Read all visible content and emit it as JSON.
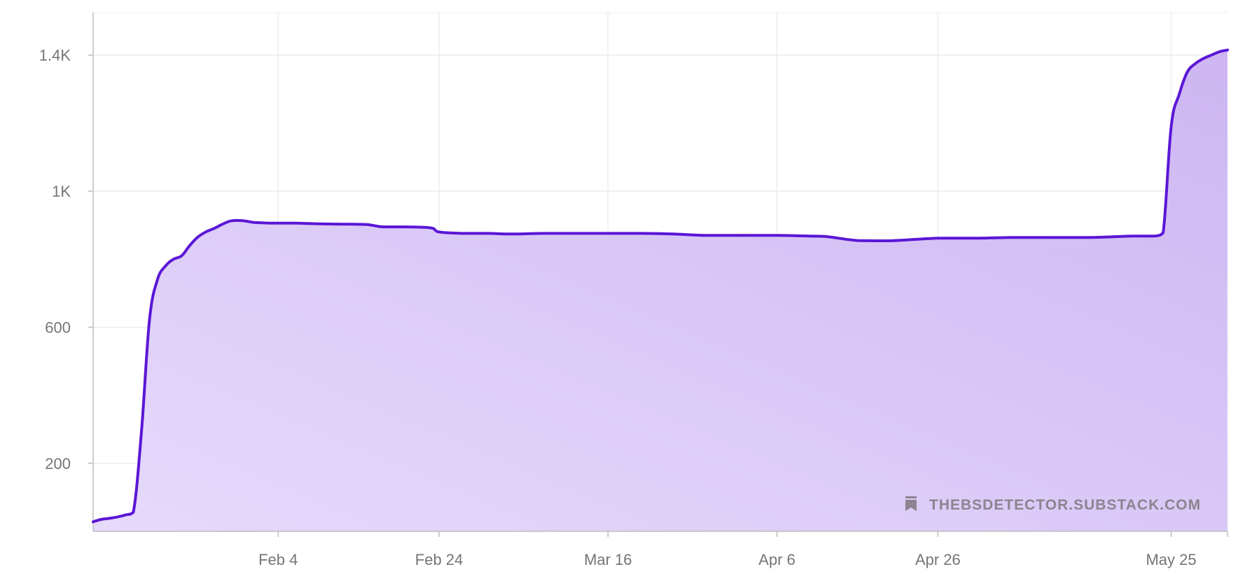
{
  "colors": {
    "line": "#5b16d6",
    "fill_light": "#e6dafb",
    "fill_dark": "#cdb6f2",
    "grid": "#ececec",
    "axis": "#bdbdbd",
    "tick_text": "#757575",
    "watermark": "#8a8490"
  },
  "watermark": {
    "icon": "bookmark-icon",
    "text": "THEBSDETECTOR.SUBSTACK.COM"
  },
  "chart_data": {
    "type": "area",
    "title": "",
    "xlabel": "",
    "ylabel": "",
    "grid": true,
    "legend": "none",
    "xlim": [
      "2024-01-12",
      "2024-06-01"
    ],
    "ylim": [
      0,
      1525
    ],
    "x_ticks": [
      {
        "date": "2024-02-04",
        "label": "Feb 4"
      },
      {
        "date": "2024-02-24",
        "label": "Feb 24"
      },
      {
        "date": "2024-03-16",
        "label": "Mar 16"
      },
      {
        "date": "2024-04-06",
        "label": "Apr 6"
      },
      {
        "date": "2024-04-26",
        "label": "Apr 26"
      },
      {
        "date": "2024-05-25",
        "label": "May 25"
      }
    ],
    "y_ticks": [
      {
        "value": 200,
        "label": "200"
      },
      {
        "value": 600,
        "label": "600"
      },
      {
        "value": 1000,
        "label": "1K"
      },
      {
        "value": 1400,
        "label": "1.4K"
      }
    ],
    "series": [
      {
        "x": [
          "2024-01-12",
          "2024-01-13",
          "2024-01-14",
          "2024-01-15",
          "2024-01-16",
          "2024-01-17",
          "2024-01-18",
          "2024-01-19",
          "2024-01-20",
          "2024-01-21",
          "2024-01-22",
          "2024-01-23",
          "2024-01-24",
          "2024-01-25",
          "2024-01-26",
          "2024-01-27",
          "2024-01-28",
          "2024-01-29",
          "2024-01-30",
          "2024-01-31",
          "2024-02-01",
          "2024-02-02",
          "2024-02-03",
          "2024-02-04",
          "2024-02-06",
          "2024-02-09",
          "2024-02-12",
          "2024-02-15",
          "2024-02-17",
          "2024-02-20",
          "2024-02-23",
          "2024-02-24",
          "2024-02-27",
          "2024-03-01",
          "2024-03-04",
          "2024-03-08",
          "2024-03-12",
          "2024-03-16",
          "2024-03-20",
          "2024-03-24",
          "2024-03-28",
          "2024-04-01",
          "2024-04-06",
          "2024-04-10",
          "2024-04-12",
          "2024-04-16",
          "2024-04-20",
          "2024-04-26",
          "2024-05-01",
          "2024-05-05",
          "2024-05-10",
          "2024-05-15",
          "2024-05-20",
          "2024-05-22",
          "2024-05-23",
          "2024-05-24",
          "2024-05-25",
          "2024-05-26",
          "2024-05-27",
          "2024-05-28",
          "2024-05-29",
          "2024-05-30",
          "2024-05-31",
          "2024-06-01"
        ],
        "y": [
          28,
          35,
          38,
          42,
          48,
          56,
          290,
          620,
          740,
          780,
          800,
          810,
          840,
          865,
          880,
          890,
          902,
          912,
          914,
          912,
          908,
          907,
          906,
          906,
          906,
          904,
          903,
          902,
          895,
          895,
          892,
          880,
          876,
          876,
          874,
          876,
          876,
          876,
          876,
          874,
          870,
          870,
          870,
          868,
          867,
          855,
          854,
          862,
          862,
          864,
          864,
          864,
          868,
          868,
          868,
          878,
          1190,
          1285,
          1350,
          1375,
          1390,
          1400,
          1410,
          1415
        ]
      }
    ]
  }
}
